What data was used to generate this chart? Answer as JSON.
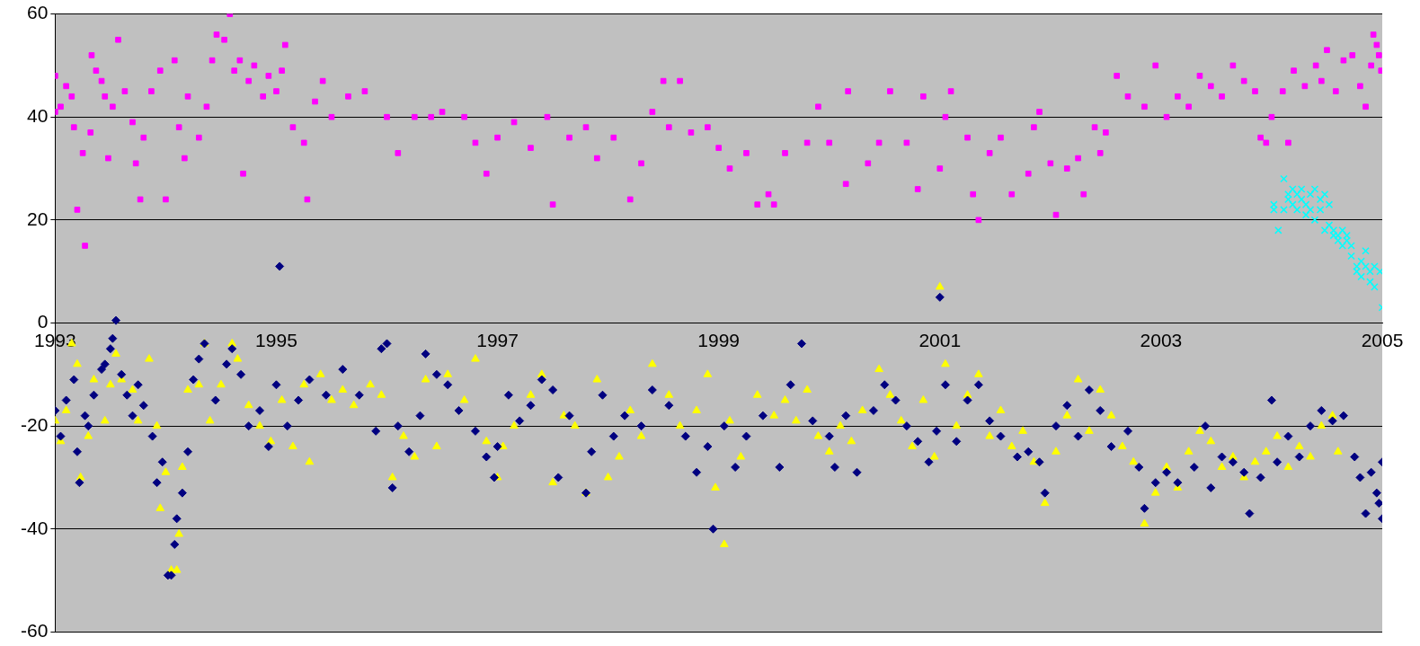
{
  "chart_data": {
    "type": "scatter",
    "xlim": [
      1993,
      2005
    ],
    "xticks": [
      1993,
      1995,
      1997,
      1999,
      2001,
      2003,
      2005
    ],
    "ylim": [
      -60,
      60
    ],
    "yticks": [
      -60,
      -40,
      -20,
      0,
      20,
      40,
      60
    ],
    "grid": "y",
    "series": [
      {
        "color": "#ff00ff",
        "marker": "square",
        "x": [
          1993.0,
          1993.0,
          1993.05,
          1993.1,
          1993.15,
          1993.17,
          1993.2,
          1993.25,
          1993.27,
          1993.32,
          1993.33,
          1993.37,
          1993.42,
          1993.45,
          1993.48,
          1993.52,
          1993.57,
          1993.63,
          1993.7,
          1993.73,
          1993.77,
          1993.8,
          1993.87,
          1993.95,
          1994.0,
          1994.08,
          1994.12,
          1994.17,
          1994.2,
          1994.3,
          1994.37,
          1994.42,
          1994.46,
          1994.53,
          1994.58,
          1994.62,
          1994.67,
          1994.7,
          1994.75,
          1994.8,
          1994.88,
          1994.93,
          1995.0,
          1995.05,
          1995.08,
          1995.15,
          1995.25,
          1995.28,
          1995.35,
          1995.42,
          1995.5,
          1995.65,
          1995.8,
          1996.0,
          1996.1,
          1996.25,
          1996.4,
          1996.5,
          1996.7,
          1996.8,
          1996.9,
          1997.0,
          1997.15,
          1997.3,
          1997.45,
          1997.5,
          1997.65,
          1997.8,
          1997.9,
          1998.05,
          1998.2,
          1998.3,
          1998.4,
          1998.5,
          1998.55,
          1998.65,
          1998.75,
          1998.9,
          1999.0,
          1999.1,
          1999.25,
          1999.35,
          1999.45,
          1999.5,
          1999.6,
          1999.8,
          1999.9,
          2000.0,
          2000.15,
          2000.17,
          2000.35,
          2000.45,
          2000.55,
          2000.7,
          2000.8,
          2000.85,
          2001.0,
          2001.05,
          2001.1,
          2001.25,
          2001.3,
          2001.35,
          2001.45,
          2001.55,
          2001.65,
          2001.8,
          2001.85,
          2001.9,
          2002.0,
          2002.05,
          2002.15,
          2002.25,
          2002.3,
          2002.4,
          2002.45,
          2002.5,
          2002.6,
          2002.7,
          2002.85,
          2002.95,
          2003.05,
          2003.15,
          2003.25,
          2003.35,
          2003.45,
          2003.55,
          2003.65,
          2003.75,
          2003.85,
          2003.9,
          2003.95,
          2004.0,
          2004.1,
          2004.15,
          2004.2,
          2004.3,
          2004.4,
          2004.45,
          2004.5,
          2004.58,
          2004.65,
          2004.73,
          2004.8,
          2004.85,
          2004.9,
          2004.92,
          2004.95,
          2004.97,
          2004.99
        ],
        "values": [
          41,
          48,
          42,
          46,
          44,
          38,
          22,
          33,
          15,
          37,
          52,
          49,
          47,
          44,
          32,
          42,
          55,
          45,
          39,
          31,
          24,
          36,
          45,
          49,
          24,
          51,
          38,
          32,
          44,
          36,
          42,
          51,
          56,
          55,
          60,
          49,
          51,
          29,
          47,
          50,
          44,
          48,
          45,
          49,
          54,
          38,
          35,
          24,
          43,
          47,
          40,
          44,
          45,
          40,
          33,
          40,
          40,
          41,
          40,
          35,
          29,
          36,
          39,
          34,
          40,
          23,
          36,
          38,
          32,
          36,
          24,
          31,
          41,
          47,
          38,
          47,
          37,
          38,
          34,
          30,
          33,
          23,
          25,
          23,
          33,
          35,
          42,
          35,
          27,
          45,
          31,
          35,
          45,
          35,
          26,
          44,
          30,
          40,
          45,
          36,
          25,
          20,
          33,
          36,
          25,
          29,
          38,
          41,
          31,
          21,
          30,
          32,
          25,
          38,
          33,
          37,
          48,
          44,
          42,
          50,
          40,
          44,
          42,
          48,
          46,
          44,
          50,
          47,
          45,
          36,
          35,
          40,
          45,
          35,
          49,
          46,
          50,
          47,
          53,
          45,
          51,
          52,
          46,
          42,
          50,
          56,
          54,
          52,
          49
        ]
      },
      {
        "color": "#00ffff",
        "marker": "cross",
        "x": [
          2004.02,
          2004.02,
          2004.06,
          2004.11,
          2004.11,
          2004.15,
          2004.15,
          2004.19,
          2004.19,
          2004.23,
          2004.23,
          2004.27,
          2004.27,
          2004.31,
          2004.31,
          2004.35,
          2004.35,
          2004.39,
          2004.39,
          2004.44,
          2004.44,
          2004.48,
          2004.48,
          2004.52,
          2004.52,
          2004.56,
          2004.56,
          2004.6,
          2004.6,
          2004.64,
          2004.64,
          2004.68,
          2004.68,
          2004.72,
          2004.72,
          2004.77,
          2004.77,
          2004.81,
          2004.81,
          2004.85,
          2004.85,
          2004.89,
          2004.89,
          2004.93,
          2004.93,
          2004.98,
          2005.0
        ],
        "values": [
          23,
          22,
          18,
          22,
          28,
          25,
          24,
          26,
          23,
          22,
          25,
          24,
          26,
          21,
          23,
          25,
          22,
          26,
          20,
          22,
          24,
          18,
          25,
          19,
          23,
          18,
          17,
          17,
          16,
          18,
          15,
          16,
          17,
          15,
          13,
          11,
          10,
          12,
          9,
          14,
          11,
          10,
          8,
          7,
          11,
          10,
          3
        ]
      },
      {
        "color": "#000080",
        "marker": "diamond",
        "x": [
          1993.0,
          1993.05,
          1993.1,
          1993.17,
          1993.2,
          1993.22,
          1993.27,
          1993.3,
          1993.35,
          1993.42,
          1993.45,
          1993.5,
          1993.52,
          1993.55,
          1993.6,
          1993.65,
          1993.7,
          1993.75,
          1993.8,
          1993.88,
          1993.92,
          1993.97,
          1994.02,
          1994.05,
          1994.08,
          1994.1,
          1994.15,
          1994.2,
          1994.25,
          1994.3,
          1994.35,
          1994.45,
          1994.55,
          1994.6,
          1994.68,
          1994.75,
          1994.85,
          1994.93,
          1995.0,
          1995.03,
          1995.1,
          1995.2,
          1995.3,
          1995.45,
          1995.6,
          1995.75,
          1995.9,
          1995.95,
          1996.0,
          1996.05,
          1996.1,
          1996.2,
          1996.3,
          1996.35,
          1996.45,
          1996.55,
          1996.65,
          1996.8,
          1996.9,
          1996.97,
          1997.0,
          1997.1,
          1997.2,
          1997.3,
          1997.4,
          1997.5,
          1997.55,
          1997.65,
          1997.8,
          1997.85,
          1997.95,
          1998.05,
          1998.15,
          1998.3,
          1998.4,
          1998.55,
          1998.7,
          1998.8,
          1998.9,
          1998.95,
          1999.05,
          1999.15,
          1999.25,
          1999.4,
          1999.55,
          1999.65,
          1999.75,
          1999.85,
          2000.0,
          2000.05,
          2000.15,
          2000.25,
          2000.4,
          2000.5,
          2000.6,
          2000.7,
          2000.8,
          2000.9,
          2000.97,
          2001.0,
          2001.05,
          2001.15,
          2001.25,
          2001.35,
          2001.45,
          2001.55,
          2001.7,
          2001.8,
          2001.9,
          2001.95,
          2002.05,
          2002.15,
          2002.25,
          2002.35,
          2002.45,
          2002.55,
          2002.7,
          2002.8,
          2002.85,
          2002.95,
          2003.05,
          2003.15,
          2003.3,
          2003.4,
          2003.45,
          2003.55,
          2003.65,
          2003.75,
          2003.8,
          2003.9,
          2004.0,
          2004.05,
          2004.15,
          2004.25,
          2004.35,
          2004.45,
          2004.55,
          2004.65,
          2004.75,
          2004.8,
          2004.85,
          2004.9,
          2004.95,
          2004.97,
          2005.0,
          2005.0
        ],
        "values": [
          -17,
          -22,
          -15,
          -11,
          -25,
          -31,
          -18,
          -20,
          -14,
          -9,
          -8,
          -5,
          -3,
          0.5,
          -10,
          -14,
          -18,
          -12,
          -16,
          -22,
          -31,
          -27,
          -49,
          -49,
          -43,
          -38,
          -33,
          -25,
          -11,
          -7,
          -4,
          -15,
          -8,
          -5,
          -10,
          -20,
          -17,
          -24,
          -12,
          11,
          -20,
          -15,
          -11,
          -14,
          -9,
          -14,
          -21,
          -5,
          -4,
          -32,
          -20,
          -25,
          -18,
          -6,
          -10,
          -12,
          -17,
          -21,
          -26,
          -30,
          -24,
          -14,
          -19,
          -16,
          -11,
          -13,
          -30,
          -18,
          -33,
          -25,
          -14,
          -22,
          -18,
          -20,
          -13,
          -16,
          -22,
          -29,
          -24,
          -40,
          -20,
          -28,
          -22,
          -18,
          -28,
          -12,
          -4,
          -19,
          -22,
          -28,
          -18,
          -29,
          -17,
          -12,
          -15,
          -20,
          -23,
          -27,
          -21,
          5,
          -12,
          -23,
          -15,
          -12,
          -19,
          -22,
          -26,
          -25,
          -27,
          -33,
          -20,
          -16,
          -22,
          -13,
          -17,
          -24,
          -21,
          -28,
          -36,
          -31,
          -29,
          -31,
          -28,
          -20,
          -32,
          -26,
          -27,
          -29,
          -37,
          -30,
          -15,
          -27,
          -22,
          -26,
          -20,
          -17,
          -19,
          -18,
          -26,
          -30,
          -37,
          -29,
          -33,
          -35,
          -38,
          -27
        ]
      },
      {
        "color": "#ffff00",
        "marker": "triangle",
        "x": [
          1993.0,
          1993.05,
          1993.1,
          1993.15,
          1993.2,
          1993.23,
          1993.3,
          1993.35,
          1993.45,
          1993.5,
          1993.55,
          1993.6,
          1993.7,
          1993.75,
          1993.85,
          1993.92,
          1993.95,
          1994.0,
          1994.05,
          1994.1,
          1994.12,
          1994.15,
          1994.2,
          1994.3,
          1994.35,
          1994.4,
          1994.5,
          1994.6,
          1994.65,
          1994.75,
          1994.85,
          1994.95,
          1995.05,
          1995.15,
          1995.25,
          1995.3,
          1995.4,
          1995.5,
          1995.6,
          1995.7,
          1995.85,
          1995.95,
          1996.05,
          1996.15,
          1996.25,
          1996.35,
          1996.45,
          1996.55,
          1996.7,
          1996.8,
          1996.9,
          1997.0,
          1997.05,
          1997.15,
          1997.3,
          1997.4,
          1997.5,
          1997.6,
          1997.7,
          1997.8,
          1997.9,
          1998.0,
          1998.1,
          1998.2,
          1998.3,
          1998.4,
          1998.55,
          1998.65,
          1998.8,
          1998.9,
          1998.97,
          1999.05,
          1999.1,
          1999.2,
          1999.35,
          1999.5,
          1999.6,
          1999.7,
          1999.8,
          1999.9,
          2000.0,
          2000.1,
          2000.2,
          2000.3,
          2000.45,
          2000.55,
          2000.65,
          2000.75,
          2000.85,
          2000.95,
          2001.0,
          2001.05,
          2001.15,
          2001.25,
          2001.35,
          2001.45,
          2001.55,
          2001.65,
          2001.75,
          2001.85,
          2001.95,
          2002.05,
          2002.15,
          2002.25,
          2002.35,
          2002.45,
          2002.55,
          2002.65,
          2002.75,
          2002.85,
          2002.95,
          2003.05,
          2003.15,
          2003.25,
          2003.35,
          2003.45,
          2003.55,
          2003.65,
          2003.75,
          2003.85,
          2003.95,
          2004.05,
          2004.15,
          2004.25,
          2004.35,
          2004.45,
          2004.55,
          2004.6
        ],
        "values": [
          -19,
          -23,
          -17,
          -4,
          -8,
          -30,
          -22,
          -11,
          -19,
          -12,
          -6,
          -11,
          -13,
          -19,
          -7,
          -20,
          -36,
          -29,
          -48,
          -48,
          -41,
          -28,
          -13,
          -12,
          -4,
          -19,
          -12,
          -4,
          -7,
          -16,
          -20,
          -23,
          -15,
          -24,
          -12,
          -27,
          -10,
          -15,
          -13,
          -16,
          -12,
          -14,
          -30,
          -22,
          -26,
          -11,
          -24,
          -10,
          -15,
          -7,
          -23,
          -30,
          -24,
          -20,
          -14,
          -10,
          -31,
          -18,
          -20,
          -33,
          -11,
          -30,
          -26,
          -17,
          -22,
          -8,
          -14,
          -20,
          -17,
          -10,
          -32,
          -43,
          -19,
          -26,
          -14,
          -18,
          -15,
          -19,
          -13,
          -22,
          -25,
          -20,
          -23,
          -17,
          -9,
          -14,
          -19,
          -24,
          -15,
          -26,
          7,
          -8,
          -20,
          -14,
          -10,
          -22,
          -17,
          -24,
          -21,
          -27,
          -35,
          -25,
          -18,
          -11,
          -21,
          -13,
          -18,
          -24,
          -27,
          -39,
          -33,
          -28,
          -32,
          -25,
          -21,
          -23,
          -28,
          -26,
          -30,
          -27,
          -25,
          -22,
          -28,
          -24,
          -26,
          -20,
          -18,
          -25
        ]
      }
    ]
  }
}
